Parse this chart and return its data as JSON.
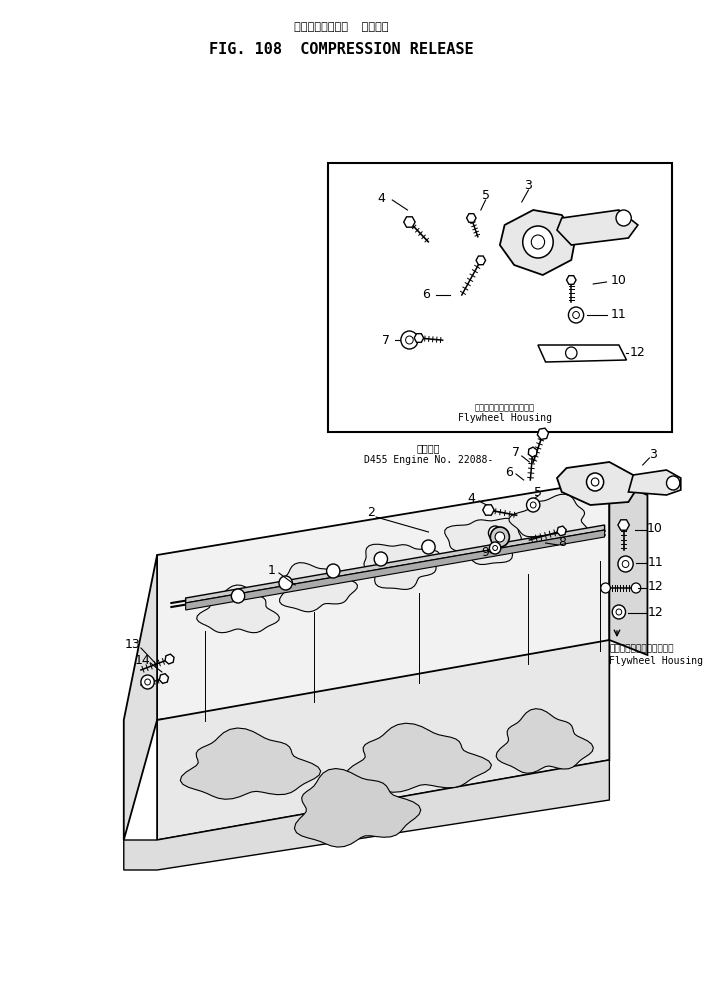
{
  "title_japanese": "コンプレッション  リリーズ",
  "title_english": "FIG. 108  COMPRESSION RELEASE",
  "bg_color": "#ffffff",
  "fig_width": 7.17,
  "fig_height": 9.89,
  "inset_label_japanese": "フライホイールハウジング",
  "inset_label_english": "Flywheel Housing",
  "main_label_japanese": "フライホイールハウジング",
  "main_label_english": "Flywheel Housing",
  "note_text_japanese": "適用内号",
  "note_text_engine": "D455 Engine No. 22088-",
  "text_color": "#000000"
}
